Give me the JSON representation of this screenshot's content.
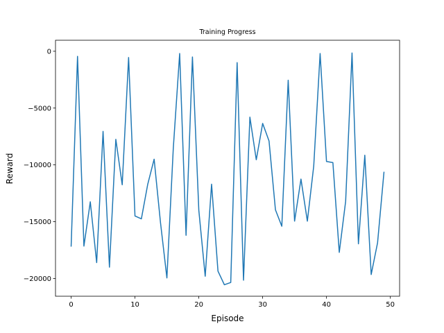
{
  "chart_data": {
    "type": "line",
    "title": "Training Progress",
    "xlabel": "Episode",
    "ylabel": "Reward",
    "xlim": [
      -2.45,
      51.45
    ],
    "ylim": [
      -21560,
      970
    ],
    "x_ticks": [
      0,
      10,
      20,
      30,
      40,
      50
    ],
    "x_tick_labels": [
      "0",
      "10",
      "20",
      "30",
      "40",
      "50"
    ],
    "y_ticks": [
      0,
      -5000,
      -10000,
      -15000,
      -20000
    ],
    "y_tick_labels": [
      "0",
      "−5000",
      "−10000",
      "−15000",
      "−20000"
    ],
    "grid": false,
    "colors": {
      "line": "#1f77b4"
    },
    "series": [
      {
        "x": [
          0,
          1,
          2,
          3,
          4,
          5,
          6,
          7,
          8,
          9,
          10,
          11,
          12,
          13,
          14,
          15,
          16,
          17,
          18,
          19,
          20,
          21,
          22,
          23,
          24,
          25,
          26,
          27,
          28,
          29,
          30,
          31,
          32,
          33,
          34,
          35,
          36,
          37,
          38,
          39,
          40,
          41,
          42,
          43,
          44,
          45,
          46,
          47,
          48,
          49
        ],
        "y": [
          -17150,
          -450,
          -17150,
          -13250,
          -18600,
          -7050,
          -19000,
          -7750,
          -11750,
          -550,
          -14500,
          -14750,
          -11700,
          -9500,
          -15100,
          -19950,
          -8550,
          -200,
          -16200,
          -500,
          -14000,
          -19800,
          -11700,
          -19350,
          -20550,
          -20350,
          -1000,
          -20150,
          -5800,
          -9550,
          -6350,
          -7900,
          -13950,
          -15400,
          -2550,
          -14950,
          -11250,
          -14950,
          -10100,
          -200,
          -9700,
          -9800,
          -17700,
          -13200,
          -150,
          -16950,
          -9150,
          -19650,
          -16850,
          -10650
        ]
      }
    ]
  }
}
